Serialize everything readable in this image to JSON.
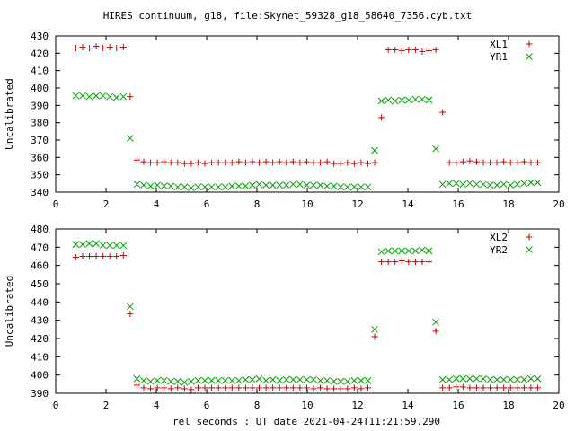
{
  "title": "HIRES continuum, g18, file:Skynet_59328_g18_58640_7356.cyb.txt",
  "xlabel": "rel seconds : UT date 2021-04-24T11:21:59.290",
  "colors": {
    "xl": "#cc0000",
    "yr": "#00a000",
    "axis": "#000000"
  },
  "chart_data": [
    {
      "type": "scatter",
      "xlim": [
        0,
        20
      ],
      "ylim": [
        340,
        430
      ],
      "xticks": [
        0,
        2,
        4,
        6,
        8,
        10,
        12,
        14,
        16,
        18,
        20
      ],
      "yticks": [
        340,
        350,
        360,
        370,
        380,
        390,
        400,
        410,
        420,
        430
      ],
      "ylabel": "Uncalibrated",
      "legend_position": "top-right",
      "series": [
        {
          "name": "XL1",
          "marker": "plus",
          "color": "#cc0000",
          "x": [
            0.8,
            1.07,
            1.34,
            1.61,
            1.88,
            2.15,
            2.42,
            2.69,
            2.96,
            3.23,
            3.5,
            3.77,
            4.04,
            4.31,
            4.58,
            4.85,
            5.12,
            5.39,
            5.66,
            5.93,
            6.2,
            6.47,
            6.74,
            7.01,
            7.28,
            7.55,
            7.82,
            8.09,
            8.36,
            8.63,
            8.9,
            9.17,
            9.44,
            9.71,
            9.98,
            10.25,
            10.52,
            10.79,
            11.06,
            11.33,
            11.6,
            11.87,
            12.14,
            12.41,
            12.68,
            12.95,
            13.22,
            13.49,
            13.76,
            14.03,
            14.3,
            14.57,
            14.84,
            15.11,
            15.38,
            15.65,
            15.92,
            16.19,
            16.46,
            16.73,
            17.0,
            17.27,
            17.54,
            17.81,
            18.08,
            18.35,
            18.62,
            18.89,
            19.16
          ],
          "y": [
            423,
            423.5,
            423,
            424,
            423,
            423.5,
            423,
            423.5,
            395,
            358.5,
            357.5,
            357,
            357,
            357.5,
            357,
            357,
            356.5,
            356.5,
            357,
            356.5,
            357,
            357,
            357,
            357,
            357.5,
            357,
            357.5,
            357,
            357.5,
            357,
            357.5,
            357,
            357.5,
            357,
            357.5,
            357,
            357,
            357.5,
            356.5,
            356.5,
            357,
            356.5,
            357,
            356.5,
            357,
            383,
            422,
            422,
            421.5,
            422,
            422,
            421,
            421.5,
            422,
            386,
            357,
            357,
            357.5,
            358,
            357.5,
            357,
            357,
            357,
            357.5,
            357,
            357,
            357.5,
            357,
            357
          ]
        },
        {
          "name": "YR1",
          "marker": "cross",
          "color": "#00a000",
          "x": [
            0.8,
            1.07,
            1.34,
            1.61,
            1.88,
            2.15,
            2.42,
            2.69,
            2.96,
            3.23,
            3.5,
            3.77,
            4.04,
            4.31,
            4.58,
            4.85,
            5.12,
            5.39,
            5.66,
            5.93,
            6.2,
            6.47,
            6.74,
            7.01,
            7.28,
            7.55,
            7.82,
            8.09,
            8.36,
            8.63,
            8.9,
            9.17,
            9.44,
            9.71,
            9.98,
            10.25,
            10.52,
            10.79,
            11.06,
            11.33,
            11.6,
            11.87,
            12.14,
            12.41,
            12.68,
            12.95,
            13.22,
            13.49,
            13.76,
            14.03,
            14.3,
            14.57,
            14.84,
            15.11,
            15.38,
            15.65,
            15.92,
            16.19,
            16.46,
            16.73,
            17.0,
            17.27,
            17.54,
            17.81,
            18.08,
            18.35,
            18.62,
            18.89,
            19.16
          ],
          "y": [
            395.5,
            395.5,
            395,
            395.5,
            395.5,
            395,
            394.5,
            395,
            371,
            344.5,
            344,
            343.5,
            344,
            343.5,
            343.5,
            343,
            343,
            342.5,
            343,
            343,
            343,
            343,
            343,
            343.5,
            343.5,
            343.5,
            344,
            344.5,
            344,
            344,
            344,
            344,
            344.5,
            344.5,
            344,
            344,
            344,
            343.5,
            343.5,
            343,
            343,
            343,
            343,
            343,
            364,
            392.5,
            393,
            392.5,
            393,
            393,
            393.5,
            393.5,
            393,
            365,
            344.5,
            345,
            345,
            344.5,
            345,
            344.5,
            344.5,
            344,
            344,
            344.5,
            344,
            344.5,
            345,
            345.5,
            345.5
          ]
        }
      ]
    },
    {
      "type": "scatter",
      "xlim": [
        0,
        20
      ],
      "ylim": [
        390,
        480
      ],
      "xticks": [
        0,
        2,
        4,
        6,
        8,
        10,
        12,
        14,
        16,
        18,
        20
      ],
      "yticks": [
        390,
        400,
        410,
        420,
        430,
        440,
        450,
        460,
        470,
        480
      ],
      "ylabel": "Uncalibrated",
      "legend_position": "top-right",
      "series": [
        {
          "name": "XL2",
          "marker": "plus",
          "color": "#cc0000",
          "x": [
            0.8,
            1.07,
            1.34,
            1.61,
            1.88,
            2.15,
            2.42,
            2.69,
            2.96,
            3.23,
            3.5,
            3.77,
            4.04,
            4.31,
            4.58,
            4.85,
            5.12,
            5.39,
            5.66,
            5.93,
            6.2,
            6.47,
            6.74,
            7.01,
            7.28,
            7.55,
            7.82,
            8.09,
            8.36,
            8.63,
            8.9,
            9.17,
            9.44,
            9.71,
            9.98,
            10.25,
            10.52,
            10.79,
            11.06,
            11.33,
            11.6,
            11.87,
            12.14,
            12.41,
            12.68,
            12.95,
            13.22,
            13.49,
            13.76,
            14.03,
            14.3,
            14.57,
            14.84,
            15.11,
            15.38,
            15.65,
            15.92,
            16.19,
            16.46,
            16.73,
            17.0,
            17.27,
            17.54,
            17.81,
            18.08,
            18.35,
            18.62,
            18.89,
            19.16
          ],
          "y": [
            464.5,
            465,
            465,
            465,
            465,
            465,
            465,
            465.5,
            433.5,
            394.5,
            393,
            392.5,
            393,
            393,
            392.5,
            393,
            392.5,
            392,
            393,
            393,
            393,
            393,
            393,
            393,
            393,
            393,
            393,
            393,
            393,
            393,
            393,
            393,
            393,
            393,
            393,
            392.5,
            393,
            392.5,
            392.5,
            392.5,
            392.5,
            393,
            392.5,
            393,
            421,
            462,
            462,
            462,
            462.5,
            462,
            462,
            462,
            462,
            424,
            393,
            393,
            393.5,
            393.5,
            393,
            393,
            393,
            393,
            393,
            393,
            393,
            393,
            393,
            393,
            393
          ]
        },
        {
          "name": "YR2",
          "marker": "cross",
          "color": "#00a000",
          "x": [
            0.8,
            1.07,
            1.34,
            1.61,
            1.88,
            2.15,
            2.42,
            2.69,
            2.96,
            3.23,
            3.5,
            3.77,
            4.04,
            4.31,
            4.58,
            4.85,
            5.12,
            5.39,
            5.66,
            5.93,
            6.2,
            6.47,
            6.74,
            7.01,
            7.28,
            7.55,
            7.82,
            8.09,
            8.36,
            8.63,
            8.9,
            9.17,
            9.44,
            9.71,
            9.98,
            10.25,
            10.52,
            10.79,
            11.06,
            11.33,
            11.6,
            11.87,
            12.14,
            12.41,
            12.68,
            12.95,
            13.22,
            13.49,
            13.76,
            14.03,
            14.3,
            14.57,
            14.84,
            15.11,
            15.38,
            15.65,
            15.92,
            16.19,
            16.46,
            16.73,
            17.0,
            17.27,
            17.54,
            17.81,
            18.08,
            18.35,
            18.62,
            18.89,
            19.16
          ],
          "y": [
            471.5,
            471.5,
            472,
            472,
            471,
            471,
            471,
            471,
            437.5,
            398,
            397,
            396.5,
            397,
            397,
            396.5,
            396.5,
            396,
            396.5,
            397,
            397,
            397,
            397,
            397,
            397,
            397,
            397.5,
            397.5,
            398,
            397,
            397.5,
            397,
            397.5,
            397.5,
            397.5,
            397.5,
            397.5,
            397,
            397,
            396.5,
            396.5,
            396.5,
            397,
            397,
            397,
            425,
            467.5,
            468,
            468,
            468,
            468,
            468,
            468.5,
            468,
            429,
            397.5,
            397.5,
            398,
            398,
            398,
            398,
            398,
            397.5,
            397.5,
            397.5,
            397.5,
            397.5,
            397.5,
            398,
            398
          ]
        }
      ]
    }
  ]
}
